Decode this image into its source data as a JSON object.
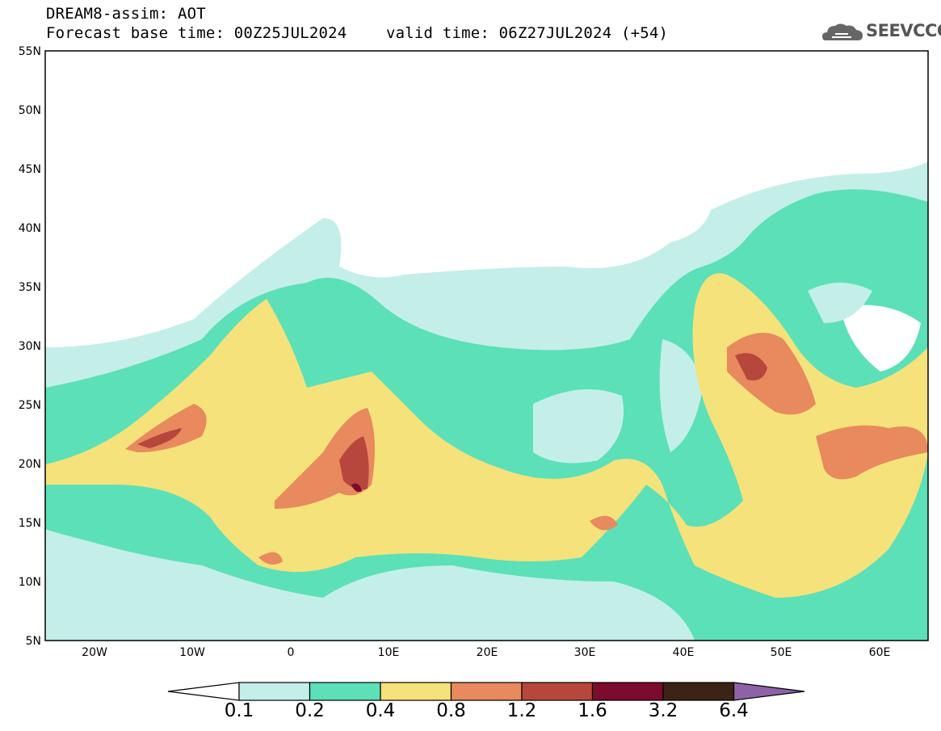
{
  "header": {
    "title_line1": "DREAM8-assim: AOT",
    "title_line2": "Forecast base time: 00Z25JUL2024",
    "valid_time": "valid time: 06Z27JUL2024 (+54)"
  },
  "logo": {
    "text": "SEEVCCC",
    "icon": "cloud-logo-icon"
  },
  "axes": {
    "lon_ticks": [
      "20W",
      "10W",
      "0",
      "10E",
      "20E",
      "30E",
      "40E",
      "50E",
      "60E"
    ],
    "lat_ticks": [
      "55N",
      "50N",
      "45N",
      "40N",
      "35N",
      "30N",
      "25N",
      "20N",
      "15N",
      "10N",
      "5N"
    ]
  },
  "colorbar": {
    "labels": [
      "0.1",
      "0.2",
      "0.4",
      "0.8",
      "1.2",
      "1.6",
      "3.2",
      "6.4"
    ],
    "colors": [
      "#ffffff",
      "#c4efe8",
      "#5ce0b8",
      "#f5e27a",
      "#e8895e",
      "#b7473d",
      "#7c0b2e",
      "#3b2316",
      "#8e62a8"
    ]
  }
}
